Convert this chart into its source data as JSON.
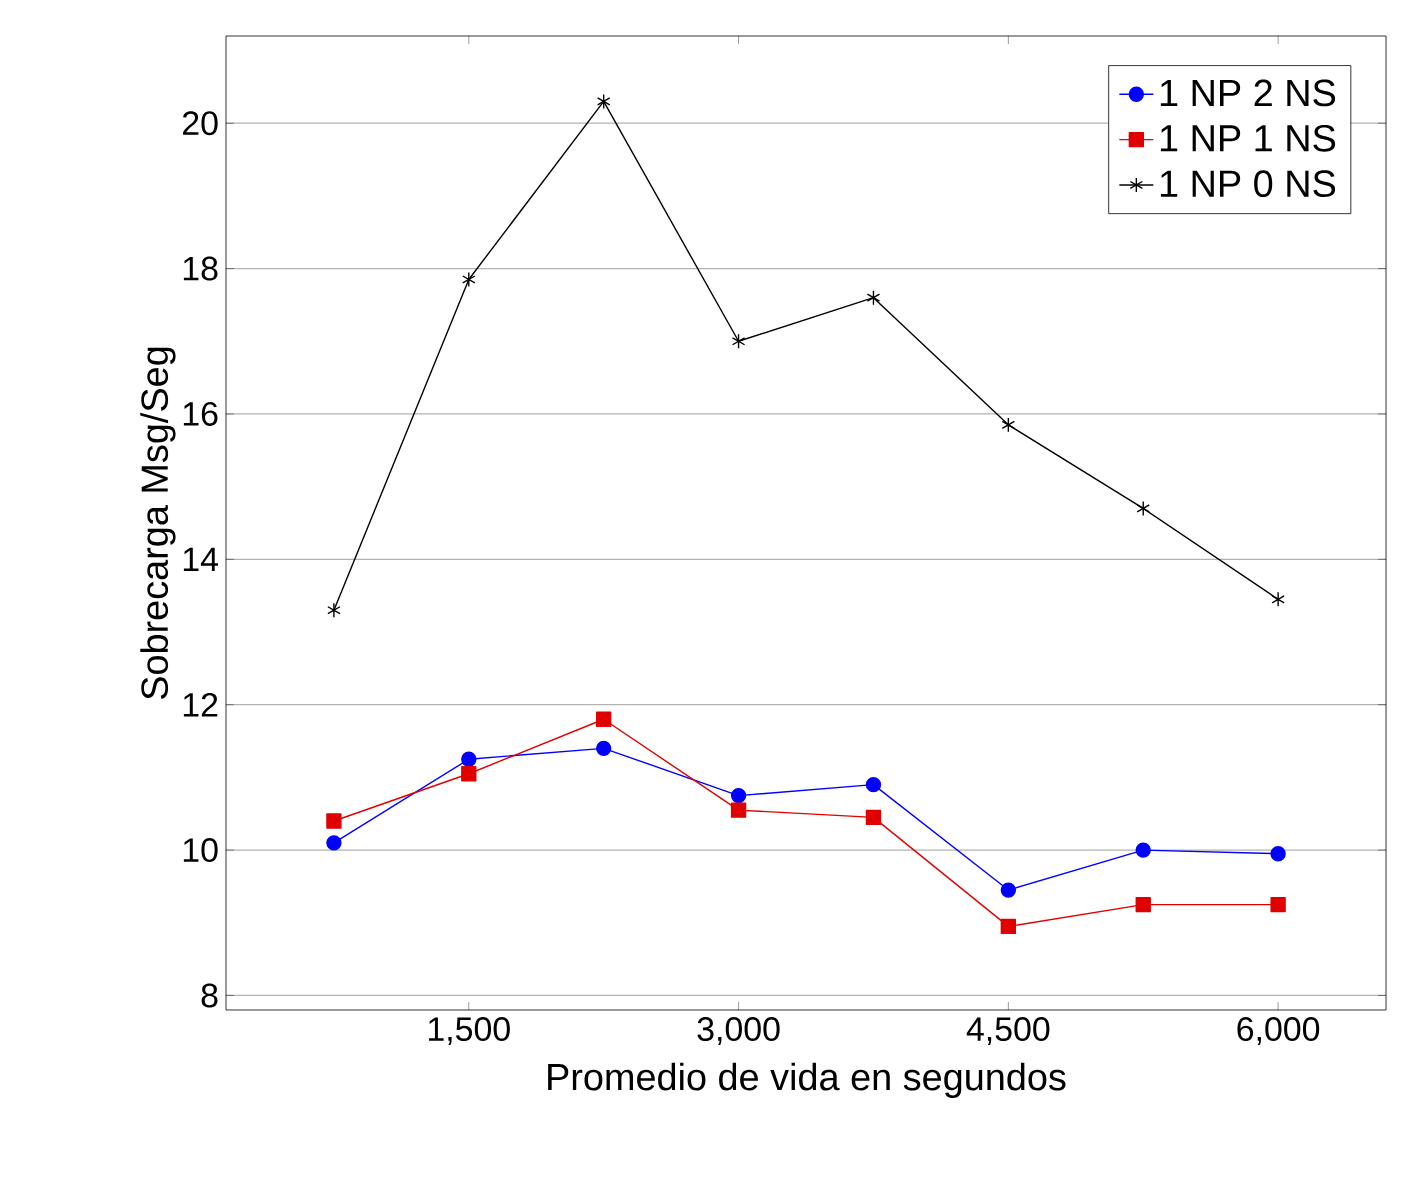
{
  "chart_data": {
    "type": "line",
    "xlabel": "Promedio de vida en segundos",
    "ylabel": "Sobrecarga Msg/Seg",
    "x": [
      750,
      1500,
      2250,
      3000,
      3750,
      4500,
      5250,
      6000
    ],
    "series": [
      {
        "name": "1 NP 2 NS",
        "color": "#0000ff",
        "marker": "circle",
        "values": [
          10.1,
          11.25,
          11.4,
          10.75,
          10.9,
          9.45,
          10.0,
          9.95
        ]
      },
      {
        "name": "1 NP 1 NS",
        "color": "#e00000",
        "marker": "square",
        "values": [
          10.4,
          11.05,
          11.8,
          10.55,
          10.45,
          8.95,
          9.25,
          9.25
        ]
      },
      {
        "name": "1 NP 0 NS",
        "color": "#000000",
        "marker": "cross",
        "values": [
          13.3,
          17.85,
          20.3,
          17.0,
          17.6,
          15.85,
          14.7,
          13.45
        ]
      }
    ],
    "xlim": [
      150,
      6600
    ],
    "xticks": [
      {
        "value": 1500,
        "label": "1,500"
      },
      {
        "value": 3000,
        "label": "3,000"
      },
      {
        "value": 4500,
        "label": "4,500"
      },
      {
        "value": 6000,
        "label": "6,000"
      }
    ],
    "ylim": [
      7.8,
      21.2
    ],
    "yticks": [
      8,
      10,
      12,
      14,
      16,
      18,
      20
    ],
    "grid": "y",
    "legend": "top right",
    "line_style": "solid"
  }
}
